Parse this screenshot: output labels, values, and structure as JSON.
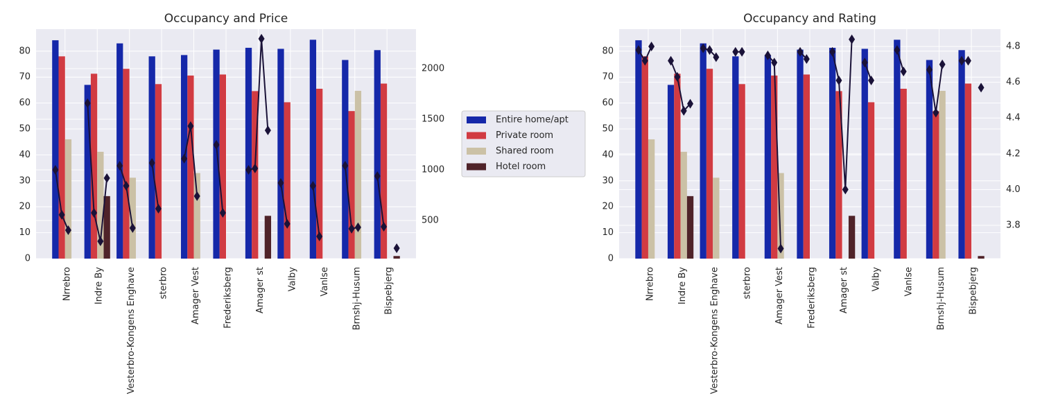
{
  "chart_data": [
    {
      "type": "bar",
      "title": "Occupancy and Price",
      "categories": [
        "Nrrebro",
        "Indre By",
        "Vesterbro-Kongens Enghave",
        "sterbro",
        "Amager Vest",
        "Frederiksberg",
        "Amager st",
        "Valby",
        "Vanlse",
        "Brnshj-Husum",
        "Bispebjerg"
      ],
      "series": [
        {
          "name": "Entire home/apt",
          "color": "#1528a9",
          "values": [
            84.2,
            67,
            83,
            78,
            78.5,
            80.6,
            81.3,
            80.9,
            84.4,
            76.6,
            80.4
          ]
        },
        {
          "name": "Private room",
          "color": "#d13b42",
          "values": [
            78,
            71.3,
            73.2,
            67.3,
            70.6,
            71,
            64.6,
            60.3,
            65.5,
            56.9,
            67.5
          ]
        },
        {
          "name": "Shared room",
          "color": "#cbc1a6",
          "values": [
            46,
            41.2,
            31.2,
            null,
            33,
            null,
            null,
            null,
            null,
            64.7,
            null
          ]
        },
        {
          "name": "Hotel room",
          "color": "#4f2329",
          "values": [
            null,
            24.1,
            null,
            null,
            null,
            null,
            16.5,
            null,
            null,
            null,
            1
          ]
        }
      ],
      "y2_values": [
        [
          1000,
          555,
          404,
          null
        ],
        [
          1658,
          575,
          294,
          918
        ],
        [
          1041,
          842,
          425,
          null
        ],
        [
          1068,
          616,
          null,
          null
        ],
        [
          1110,
          1432,
          740,
          null
        ],
        [
          1247,
          575,
          null,
          null
        ],
        [
          1000,
          1014,
          2295,
          1390
        ],
        [
          870,
          466,
          null,
          null
        ],
        [
          842,
          342,
          null,
          null
        ],
        [
          1041,
          418,
          432,
          null
        ],
        [
          938,
          438,
          null,
          226
        ]
      ],
      "line_color": "#1a1238",
      "ylim": [
        0,
        88.5
      ],
      "yticks": [
        0,
        10,
        20,
        30,
        40,
        50,
        60,
        70,
        80
      ],
      "y2lim": [
        123,
        2390
      ],
      "y2ticks": [
        500,
        1000,
        1500,
        2000
      ],
      "grid": true
    },
    {
      "type": "bar",
      "title": "Occupancy and Rating",
      "categories": [
        "Nrrebro",
        "Indre By",
        "Vesterbro-Kongens Enghave",
        "sterbro",
        "Amager Vest",
        "Frederiksberg",
        "Amager st",
        "Valby",
        "Vanlse",
        "Brnshj-Husum",
        "Bispebjerg"
      ],
      "series": [
        {
          "name": "Entire home/apt",
          "color": "#1528a9",
          "values": [
            84.2,
            67,
            83,
            78,
            78.5,
            80.6,
            81.3,
            80.9,
            84.4,
            76.6,
            80.4
          ]
        },
        {
          "name": "Private room",
          "color": "#d13b42",
          "values": [
            78,
            71.3,
            73.2,
            67.3,
            70.6,
            71,
            64.6,
            60.3,
            65.5,
            56.9,
            67.5
          ]
        },
        {
          "name": "Shared room",
          "color": "#cbc1a6",
          "values": [
            46,
            41.2,
            31.2,
            null,
            33,
            null,
            null,
            null,
            null,
            64.7,
            null
          ]
        },
        {
          "name": "Hotel room",
          "color": "#4f2329",
          "values": [
            null,
            24.1,
            null,
            null,
            null,
            null,
            16.5,
            null,
            null,
            null,
            1
          ]
        }
      ],
      "y2_values": [
        [
          4.78,
          4.72,
          4.8,
          null
        ],
        [
          4.72,
          4.63,
          4.44,
          4.48
        ],
        [
          4.79,
          4.78,
          4.74,
          null
        ],
        [
          4.77,
          4.77,
          null,
          null
        ],
        [
          4.75,
          4.71,
          3.67,
          null
        ],
        [
          4.77,
          4.73,
          null,
          null
        ],
        [
          4.77,
          4.61,
          4.0,
          4.84
        ],
        [
          4.71,
          4.61,
          null,
          null
        ],
        [
          4.78,
          4.66,
          null,
          null
        ],
        [
          4.67,
          4.43,
          4.7,
          null
        ],
        [
          4.72,
          4.72,
          null,
          4.57
        ]
      ],
      "line_color": "#1a1238",
      "ylim": [
        0,
        88.5
      ],
      "yticks": [
        0,
        10,
        20,
        30,
        40,
        50,
        60,
        70,
        80
      ],
      "y2lim": [
        3.614,
        4.897
      ],
      "y2ticks": [
        {
          "value": 3.8,
          "label": "3.8"
        },
        {
          "value": 4,
          "label": "4.0"
        },
        4.2,
        4.4,
        4.6,
        4.8
      ],
      "grid": true
    }
  ]
}
